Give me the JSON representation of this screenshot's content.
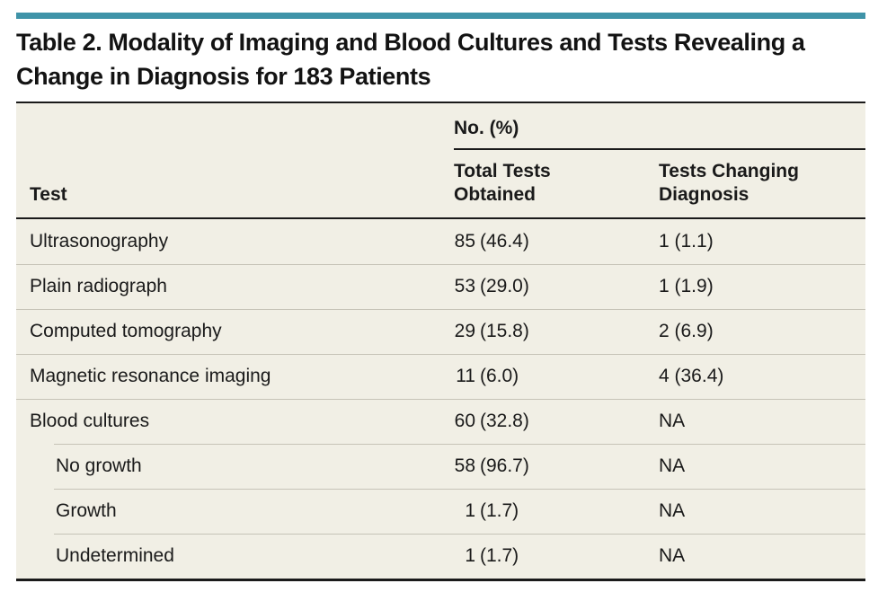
{
  "accent_color": "#3f93a8",
  "title": "Table 2. Modality of Imaging and Blood Cultures and Tests Revealing a Change in Diagnosis for 183 Patients",
  "table": {
    "group_header": "No. (%)",
    "columns": [
      "Test",
      "Total Tests Obtained",
      "Tests Changing Diagnosis"
    ],
    "rows": [
      {
        "test": "Ultrasonography",
        "indent": false,
        "total_n": "85",
        "total_pct": "(46.4)",
        "changing": "1 (1.1)"
      },
      {
        "test": "Plain radiograph",
        "indent": false,
        "total_n": "53",
        "total_pct": "(29.0)",
        "changing": "1 (1.9)"
      },
      {
        "test": "Computed tomography",
        "indent": false,
        "total_n": "29",
        "total_pct": "(15.8)",
        "changing": "2 (6.9)"
      },
      {
        "test": "Magnetic resonance imaging",
        "indent": false,
        "total_n": "11",
        "total_pct": "(6.0)",
        "changing": "4 (36.4)"
      },
      {
        "test": "Blood cultures",
        "indent": false,
        "total_n": "60",
        "total_pct": "(32.8)",
        "changing": "NA"
      },
      {
        "test": "No growth",
        "indent": true,
        "total_n": "58",
        "total_pct": "(96.7)",
        "changing": "NA"
      },
      {
        "test": "Growth",
        "indent": true,
        "total_n": "1",
        "total_pct": "(1.7)",
        "changing": "NA"
      },
      {
        "test": "Undetermined",
        "indent": true,
        "total_n": "1",
        "total_pct": "(1.7)",
        "changing": "NA"
      }
    ]
  }
}
